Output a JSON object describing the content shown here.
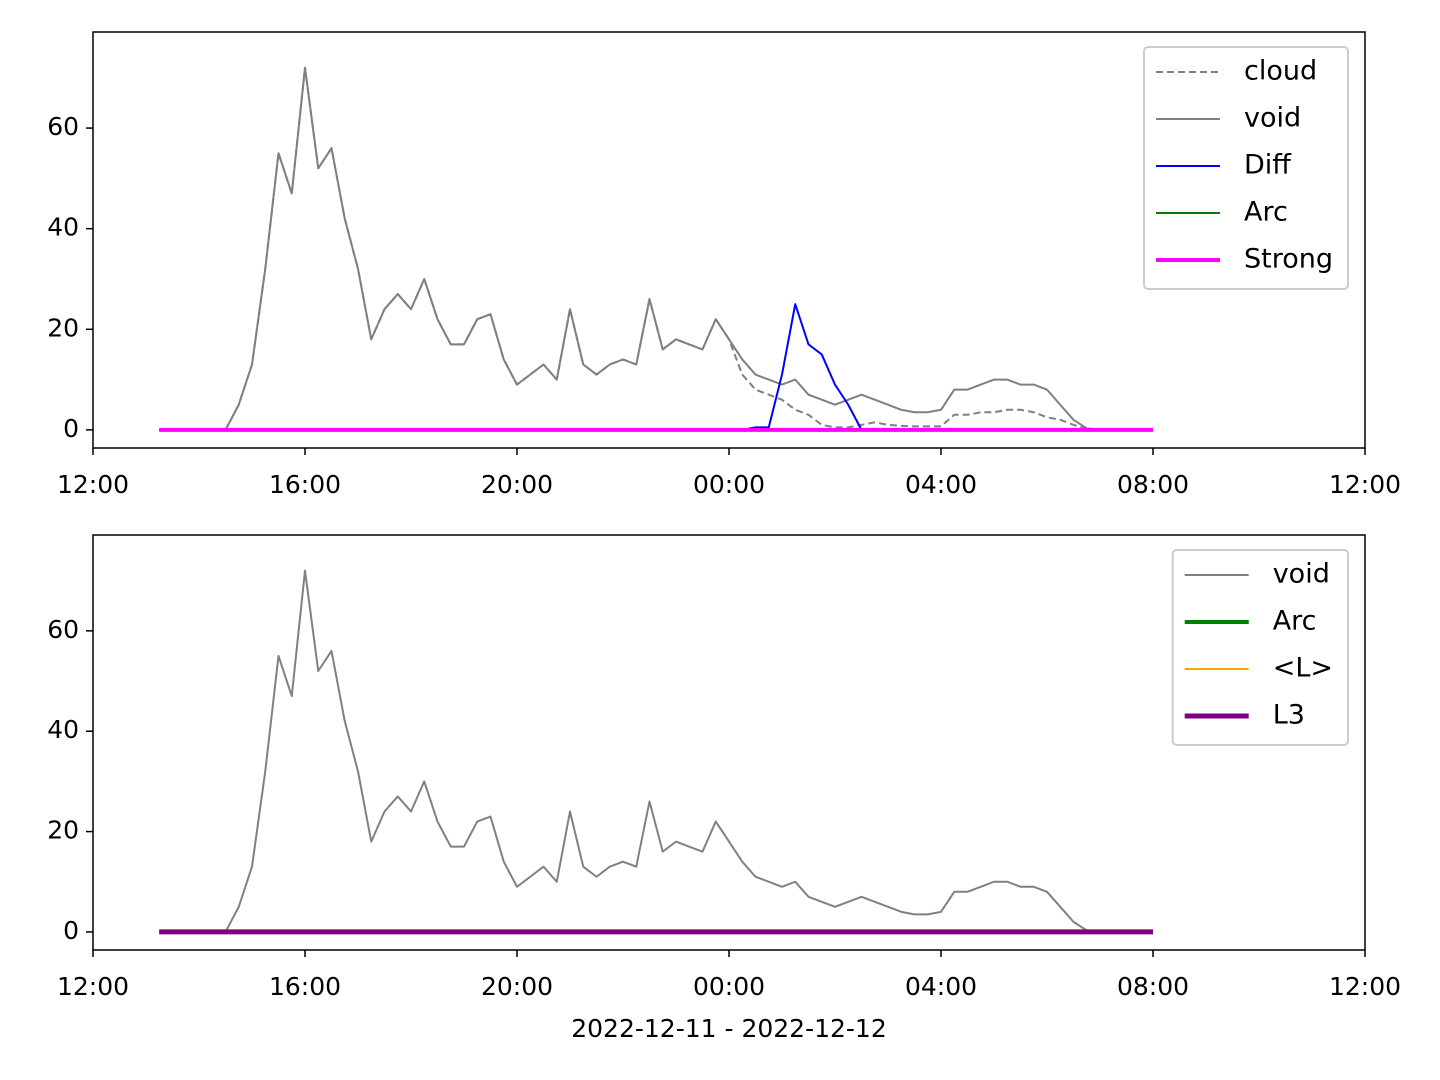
{
  "chart_data": [
    {
      "type": "line",
      "x": [
        "2022-12-11T13:15",
        "2022-12-11T13:30",
        "2022-12-11T13:45",
        "2022-12-11T14:00",
        "2022-12-11T14:15",
        "2022-12-11T14:30",
        "2022-12-11T14:45",
        "2022-12-11T15:00",
        "2022-12-11T15:15",
        "2022-12-11T15:30",
        "2022-12-11T15:45",
        "2022-12-11T16:00",
        "2022-12-11T16:15",
        "2022-12-11T16:30",
        "2022-12-11T16:45",
        "2022-12-11T17:00",
        "2022-12-11T17:15",
        "2022-12-11T17:30",
        "2022-12-11T17:45",
        "2022-12-11T18:00",
        "2022-12-11T18:15",
        "2022-12-11T18:30",
        "2022-12-11T18:45",
        "2022-12-11T19:00",
        "2022-12-11T19:15",
        "2022-12-11T19:30",
        "2022-12-11T19:45",
        "2022-12-11T20:00",
        "2022-12-11T20:15",
        "2022-12-11T20:30",
        "2022-12-11T20:45",
        "2022-12-11T21:00",
        "2022-12-11T21:15",
        "2022-12-11T21:30",
        "2022-12-11T21:45",
        "2022-12-11T22:00",
        "2022-12-11T22:15",
        "2022-12-11T22:30",
        "2022-12-11T22:45",
        "2022-12-11T23:00",
        "2022-12-11T23:15",
        "2022-12-11T23:30",
        "2022-12-11T23:45",
        "2022-12-12T00:00",
        "2022-12-12T00:15",
        "2022-12-12T00:30",
        "2022-12-12T00:45",
        "2022-12-12T01:00",
        "2022-12-12T01:15",
        "2022-12-12T01:30",
        "2022-12-12T01:45",
        "2022-12-12T02:00",
        "2022-12-12T02:15",
        "2022-12-12T02:30",
        "2022-12-12T02:45",
        "2022-12-12T03:00",
        "2022-12-12T03:15",
        "2022-12-12T03:30",
        "2022-12-12T03:45",
        "2022-12-12T04:00",
        "2022-12-12T04:15",
        "2022-12-12T04:30",
        "2022-12-12T04:45",
        "2022-12-12T05:00",
        "2022-12-12T05:15",
        "2022-12-12T05:30",
        "2022-12-12T05:45",
        "2022-12-12T06:00",
        "2022-12-12T06:15",
        "2022-12-12T06:30",
        "2022-12-12T06:45",
        "2022-12-12T07:00",
        "2022-12-12T07:15",
        "2022-12-12T07:30",
        "2022-12-12T07:45",
        "2022-12-12T08:00"
      ],
      "series": [
        {
          "name": "cloud",
          "color": "#808080",
          "linestyle": "dashed",
          "linewidth": 2,
          "values": [
            0,
            0,
            0,
            0,
            0,
            0,
            5,
            13,
            32,
            55,
            47,
            72,
            52,
            56,
            42,
            32,
            18,
            24,
            27,
            24,
            30,
            22,
            17,
            17,
            22,
            23,
            14,
            9,
            11,
            13,
            10,
            24,
            13,
            11,
            13,
            14,
            13,
            26,
            16,
            18,
            17,
            16,
            22,
            18,
            11,
            8,
            7,
            6,
            4,
            3,
            1,
            0.5,
            0.5,
            1,
            1.5,
            1,
            0.8,
            0.7,
            0.7,
            0.7,
            3,
            3,
            3.5,
            3.5,
            4,
            4,
            3.5,
            2.5,
            2,
            1,
            0.2,
            0,
            0,
            0,
            0,
            0
          ]
        },
        {
          "name": "void",
          "color": "#808080",
          "linestyle": "solid",
          "linewidth": 2,
          "values": [
            0,
            0,
            0,
            0,
            0,
            0,
            5,
            13,
            32,
            55,
            47,
            72,
            52,
            56,
            42,
            32,
            18,
            24,
            27,
            24,
            30,
            22,
            17,
            17,
            22,
            23,
            14,
            9,
            11,
            13,
            10,
            24,
            13,
            11,
            13,
            14,
            13,
            26,
            16,
            18,
            17,
            16,
            22,
            18,
            14,
            11,
            10,
            9,
            10,
            7,
            6,
            5,
            6,
            7,
            6,
            5,
            4,
            3.5,
            3.5,
            4,
            8,
            8,
            9,
            10,
            10,
            9,
            9,
            8,
            5,
            2,
            0.3,
            0,
            0,
            0,
            0,
            0
          ]
        },
        {
          "name": "Diff",
          "color": "#0000ff",
          "linestyle": "solid",
          "linewidth": 2,
          "values": [
            0,
            0,
            0,
            0,
            0,
            0,
            0,
            0,
            0,
            0,
            0,
            0,
            0,
            0,
            0,
            0,
            0,
            0,
            0,
            0,
            0,
            0,
            0,
            0,
            0,
            0,
            0,
            0,
            0,
            0,
            0,
            0,
            0,
            0,
            0,
            0,
            0,
            0,
            0,
            0,
            0,
            0,
            0,
            0,
            0,
            0.5,
            0.5,
            11,
            25,
            17,
            15,
            9,
            5,
            0,
            0,
            0,
            0,
            0,
            0,
            0,
            0,
            0,
            0,
            0,
            0,
            0,
            0,
            0,
            0,
            0,
            0,
            0,
            0,
            0,
            0,
            0
          ]
        },
        {
          "name": "Arc",
          "color": "#008000",
          "linestyle": "solid",
          "linewidth": 2,
          "values": [
            0,
            0,
            0,
            0,
            0,
            0,
            0,
            0,
            0,
            0,
            0,
            0,
            0,
            0,
            0,
            0,
            0,
            0,
            0,
            0,
            0,
            0,
            0,
            0,
            0,
            0,
            0,
            0,
            0,
            0,
            0,
            0,
            0,
            0,
            0,
            0,
            0,
            0,
            0,
            0,
            0,
            0,
            0,
            0,
            0,
            0,
            0,
            0,
            0,
            0,
            0,
            0,
            0,
            0,
            0,
            0,
            0,
            0,
            0,
            0,
            0,
            0,
            0,
            0,
            0,
            0,
            0,
            0,
            0,
            0,
            0,
            0,
            0,
            0,
            0,
            0
          ]
        },
        {
          "name": "Strong",
          "color": "#ff00ff",
          "linestyle": "solid",
          "linewidth": 4,
          "values": [
            0,
            0,
            0,
            0,
            0,
            0,
            0,
            0,
            0,
            0,
            0,
            0,
            0,
            0,
            0,
            0,
            0,
            0,
            0,
            0,
            0,
            0,
            0,
            0,
            0,
            0,
            0,
            0,
            0,
            0,
            0,
            0,
            0,
            0,
            0,
            0,
            0,
            0,
            0,
            0,
            0,
            0,
            0,
            0,
            0,
            0,
            0,
            0,
            0,
            0,
            0,
            0,
            0,
            0,
            0,
            0,
            0,
            0,
            0,
            0,
            0,
            0,
            0,
            0,
            0,
            0,
            0,
            0,
            0,
            0,
            0,
            0,
            0,
            0,
            0,
            0
          ]
        }
      ],
      "xlim": [
        "2022-12-11T12:00",
        "2022-12-12T12:00"
      ],
      "xticks": [
        {
          "value": "2022-12-11T12:00",
          "label": "12:00"
        },
        {
          "value": "2022-12-11T16:00",
          "label": "16:00"
        },
        {
          "value": "2022-12-11T20:00",
          "label": "20:00"
        },
        {
          "value": "2022-12-12T00:00",
          "label": "00:00"
        },
        {
          "value": "2022-12-12T04:00",
          "label": "04:00"
        },
        {
          "value": "2022-12-12T08:00",
          "label": "08:00"
        },
        {
          "value": "2022-12-12T12:00",
          "label": "12:00"
        }
      ],
      "ylim": [
        -3.6,
        79.1
      ],
      "yticks": [
        0,
        20,
        40,
        60
      ],
      "legend": "upper right"
    },
    {
      "type": "line",
      "x": [
        "2022-12-11T13:15",
        "2022-12-11T13:30",
        "2022-12-11T13:45",
        "2022-12-11T14:00",
        "2022-12-11T14:15",
        "2022-12-11T14:30",
        "2022-12-11T14:45",
        "2022-12-11T15:00",
        "2022-12-11T15:15",
        "2022-12-11T15:30",
        "2022-12-11T15:45",
        "2022-12-11T16:00",
        "2022-12-11T16:15",
        "2022-12-11T16:30",
        "2022-12-11T16:45",
        "2022-12-11T17:00",
        "2022-12-11T17:15",
        "2022-12-11T17:30",
        "2022-12-11T17:45",
        "2022-12-11T18:00",
        "2022-12-11T18:15",
        "2022-12-11T18:30",
        "2022-12-11T18:45",
        "2022-12-11T19:00",
        "2022-12-11T19:15",
        "2022-12-11T19:30",
        "2022-12-11T19:45",
        "2022-12-11T20:00",
        "2022-12-11T20:15",
        "2022-12-11T20:30",
        "2022-12-11T20:45",
        "2022-12-11T21:00",
        "2022-12-11T21:15",
        "2022-12-11T21:30",
        "2022-12-11T21:45",
        "2022-12-11T22:00",
        "2022-12-11T22:15",
        "2022-12-11T22:30",
        "2022-12-11T22:45",
        "2022-12-11T23:00",
        "2022-12-11T23:15",
        "2022-12-11T23:30",
        "2022-12-11T23:45",
        "2022-12-12T00:00",
        "2022-12-12T00:15",
        "2022-12-12T00:30",
        "2022-12-12T00:45",
        "2022-12-12T01:00",
        "2022-12-12T01:15",
        "2022-12-12T01:30",
        "2022-12-12T01:45",
        "2022-12-12T02:00",
        "2022-12-12T02:15",
        "2022-12-12T02:30",
        "2022-12-12T02:45",
        "2022-12-12T03:00",
        "2022-12-12T03:15",
        "2022-12-12T03:30",
        "2022-12-12T03:45",
        "2022-12-12T04:00",
        "2022-12-12T04:15",
        "2022-12-12T04:30",
        "2022-12-12T04:45",
        "2022-12-12T05:00",
        "2022-12-12T05:15",
        "2022-12-12T05:30",
        "2022-12-12T05:45",
        "2022-12-12T06:00",
        "2022-12-12T06:15",
        "2022-12-12T06:30",
        "2022-12-12T06:45",
        "2022-12-12T07:00",
        "2022-12-12T07:15",
        "2022-12-12T07:30",
        "2022-12-12T07:45",
        "2022-12-12T08:00"
      ],
      "series": [
        {
          "name": "void",
          "color": "#808080",
          "linestyle": "solid",
          "linewidth": 2,
          "values": [
            0,
            0,
            0,
            0,
            0,
            0,
            5,
            13,
            32,
            55,
            47,
            72,
            52,
            56,
            42,
            32,
            18,
            24,
            27,
            24,
            30,
            22,
            17,
            17,
            22,
            23,
            14,
            9,
            11,
            13,
            10,
            24,
            13,
            11,
            13,
            14,
            13,
            26,
            16,
            18,
            17,
            16,
            22,
            18,
            14,
            11,
            10,
            9,
            10,
            7,
            6,
            5,
            6,
            7,
            6,
            5,
            4,
            3.5,
            3.5,
            4,
            8,
            8,
            9,
            10,
            10,
            9,
            9,
            8,
            5,
            2,
            0.3,
            0,
            0,
            0,
            0,
            0
          ]
        },
        {
          "name": "Arc",
          "color": "#008000",
          "linestyle": "solid",
          "linewidth": 4,
          "values": [
            0,
            0,
            0,
            0,
            0,
            0,
            0,
            0,
            0,
            0,
            0,
            0,
            0,
            0,
            0,
            0,
            0,
            0,
            0,
            0,
            0,
            0,
            0,
            0,
            0,
            0,
            0,
            0,
            0,
            0,
            0,
            0,
            0,
            0,
            0,
            0,
            0,
            0,
            0,
            0,
            0,
            0,
            0,
            0,
            0,
            0,
            0,
            0,
            0,
            0,
            0,
            0,
            0,
            0,
            0,
            0,
            0,
            0,
            0,
            0,
            0,
            0,
            0,
            0,
            0,
            0,
            0,
            0,
            0,
            0,
            0,
            0,
            0,
            0,
            0,
            0
          ]
        },
        {
          "name": "<L>",
          "color": "#ffa500",
          "linestyle": "solid",
          "linewidth": 2,
          "values": [
            0,
            0,
            0,
            0,
            0,
            0,
            0,
            0,
            0,
            0,
            0,
            0,
            0,
            0,
            0,
            0,
            0,
            0,
            0,
            0,
            0,
            0,
            0,
            0,
            0,
            0,
            0,
            0,
            0,
            0,
            0,
            0,
            0,
            0,
            0,
            0,
            0,
            0,
            0,
            0,
            0,
            0,
            0,
            0,
            0,
            0,
            0,
            0,
            0,
            0,
            0,
            0,
            0,
            0,
            0,
            0,
            0,
            0,
            0,
            0,
            0,
            0,
            0,
            0,
            0,
            0,
            0,
            0,
            0,
            0,
            0,
            0,
            0,
            0,
            0,
            0
          ]
        },
        {
          "name": "L3",
          "color": "#800080",
          "linestyle": "solid",
          "linewidth": 5,
          "values": [
            0,
            0,
            0,
            0,
            0,
            0,
            0,
            0,
            0,
            0,
            0,
            0,
            0,
            0,
            0,
            0,
            0,
            0,
            0,
            0,
            0,
            0,
            0,
            0,
            0,
            0,
            0,
            0,
            0,
            0,
            0,
            0,
            0,
            0,
            0,
            0,
            0,
            0,
            0,
            0,
            0,
            0,
            0,
            0,
            0,
            0,
            0,
            0,
            0,
            0,
            0,
            0,
            0,
            0,
            0,
            0,
            0,
            0,
            0,
            0,
            0,
            0,
            0,
            0,
            0,
            0,
            0,
            0,
            0,
            0,
            0,
            0,
            0,
            0,
            0,
            0
          ]
        }
      ],
      "xlim": [
        "2022-12-11T12:00",
        "2022-12-12T12:00"
      ],
      "xticks": [
        {
          "value": "2022-12-11T12:00",
          "label": "12:00"
        },
        {
          "value": "2022-12-11T16:00",
          "label": "16:00"
        },
        {
          "value": "2022-12-11T20:00",
          "label": "20:00"
        },
        {
          "value": "2022-12-12T00:00",
          "label": "00:00"
        },
        {
          "value": "2022-12-12T04:00",
          "label": "04:00"
        },
        {
          "value": "2022-12-12T08:00",
          "label": "08:00"
        },
        {
          "value": "2022-12-12T12:00",
          "label": "12:00"
        }
      ],
      "ylim": [
        -3.6,
        79.1
      ],
      "yticks": [
        0,
        20,
        40,
        60
      ],
      "legend": "upper right",
      "xlabel": "2022-12-11 - 2022-12-12"
    }
  ]
}
